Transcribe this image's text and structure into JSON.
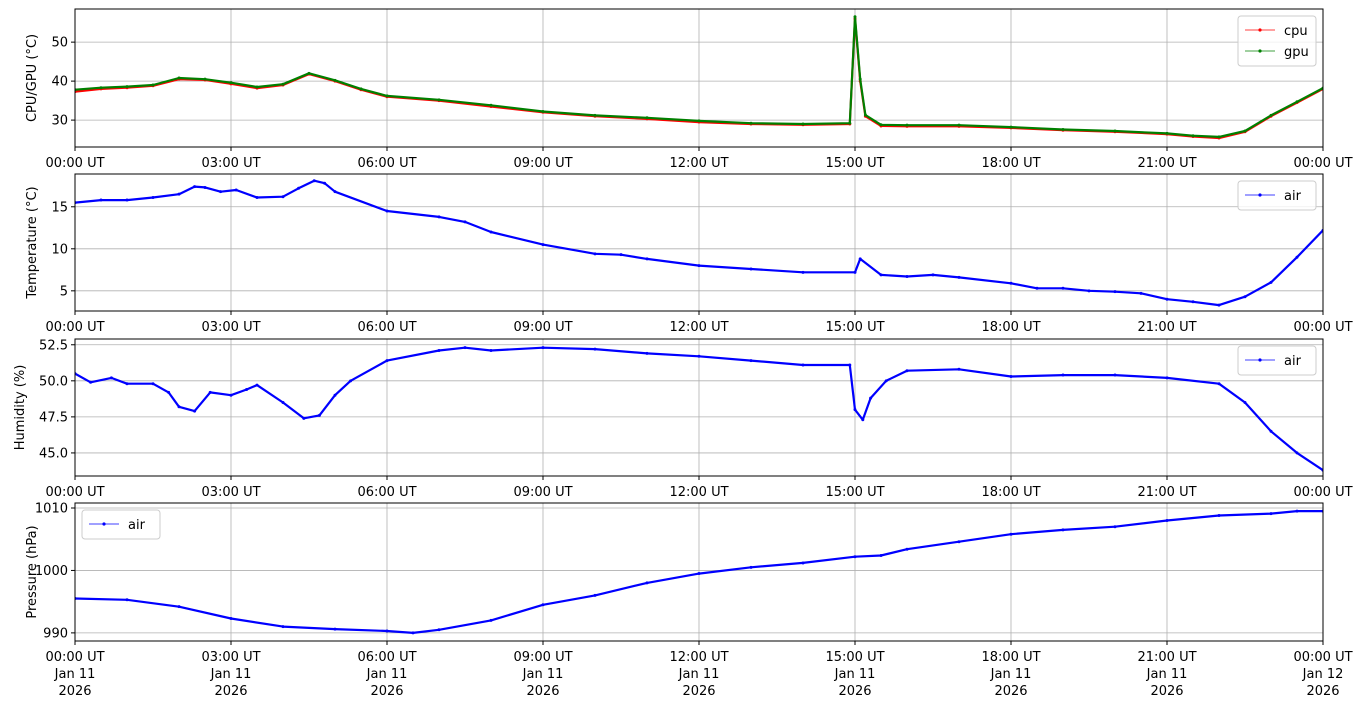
{
  "chart_data": [
    {
      "type": "line",
      "ylabel": "CPU/GPU (°C)",
      "ylim": [
        23.1,
        58.5
      ],
      "yticks": [
        30,
        40,
        50
      ],
      "xlim": [
        0,
        24
      ],
      "grid": true,
      "legend": "top-right",
      "series": [
        {
          "name": "cpu",
          "color": "#ff0000",
          "x": [
            0,
            0.5,
            1,
            1.5,
            2,
            2.5,
            3,
            3.5,
            4,
            4.5,
            5,
            5.5,
            6,
            7,
            8,
            9,
            10,
            11,
            12,
            13,
            14,
            14.9,
            15.0,
            15.1,
            15.2,
            15.5,
            16,
            17,
            18,
            19,
            20,
            21,
            21.5,
            22,
            22.5,
            23,
            23.5,
            24
          ],
          "y": [
            37.3,
            38,
            38.3,
            38.8,
            40.5,
            40.3,
            39.3,
            38.2,
            39,
            41.8,
            40,
            37.8,
            36,
            35,
            33.5,
            32,
            31,
            30.3,
            29.5,
            29,
            28.8,
            29,
            56,
            40,
            31,
            28.5,
            28.4,
            28.4,
            28,
            27.4,
            27,
            26.4,
            25.8,
            25.4,
            27,
            31,
            34.5,
            38
          ]
        },
        {
          "name": "gpu",
          "color": "#008000",
          "x": [
            0,
            0.5,
            1,
            1.5,
            2,
            2.5,
            3,
            3.5,
            4,
            4.5,
            5,
            5.5,
            6,
            7,
            8,
            9,
            10,
            11,
            12,
            13,
            14,
            14.9,
            15.0,
            15.1,
            15.2,
            15.5,
            16,
            17,
            18,
            19,
            20,
            21,
            21.5,
            22,
            22.5,
            23,
            23.5,
            24
          ],
          "y": [
            37.8,
            38.3,
            38.6,
            39,
            40.8,
            40.5,
            39.6,
            38.5,
            39.2,
            42,
            40.2,
            38,
            36.2,
            35.2,
            33.8,
            32.2,
            31.2,
            30.6,
            29.8,
            29.2,
            29,
            29.2,
            56.5,
            40.5,
            31.3,
            28.8,
            28.7,
            28.7,
            28.2,
            27.6,
            27.2,
            26.6,
            26,
            25.7,
            27.2,
            31.2,
            34.7,
            38.2
          ]
        }
      ]
    },
    {
      "type": "line",
      "ylabel": "Temperature (°C)",
      "ylim": [
        2.6,
        18.9
      ],
      "yticks": [
        5,
        10,
        15
      ],
      "xlim": [
        0,
        24
      ],
      "grid": true,
      "legend": "top-right",
      "series": [
        {
          "name": "air",
          "color": "#0000ff",
          "x": [
            0,
            0.5,
            1,
            1.5,
            2,
            2.3,
            2.5,
            2.8,
            3.1,
            3.5,
            4,
            4.3,
            4.6,
            4.8,
            5,
            6,
            7,
            7.5,
            8,
            9,
            10,
            10.5,
            11,
            12,
            13,
            14,
            15,
            15.1,
            15.5,
            16,
            16.5,
            17,
            18,
            18.5,
            19,
            19.5,
            20,
            20.5,
            21,
            21.5,
            22,
            22.5,
            23,
            23.5,
            24
          ],
          "y": [
            15.5,
            15.8,
            15.8,
            16.1,
            16.5,
            17.4,
            17.3,
            16.8,
            17,
            16.1,
            16.2,
            17.2,
            18.1,
            17.8,
            16.8,
            14.5,
            13.8,
            13.2,
            12,
            10.5,
            9.4,
            9.3,
            8.8,
            8,
            7.6,
            7.2,
            7.2,
            8.8,
            6.9,
            6.7,
            6.9,
            6.6,
            5.9,
            5.3,
            5.3,
            5.0,
            4.9,
            4.7,
            4.0,
            3.7,
            3.3,
            4.3,
            6.0,
            9.0,
            12.2
          ]
        }
      ]
    },
    {
      "type": "line",
      "ylabel": "Humidity (%)",
      "ylim": [
        43.4,
        52.9
      ],
      "yticks": [
        45.0,
        47.5,
        50.0,
        52.5
      ],
      "ytick_labels": [
        "45.0",
        "47.5",
        "50.0",
        "52.5"
      ],
      "xlim": [
        0,
        24
      ],
      "grid": true,
      "legend": "top-right",
      "series": [
        {
          "name": "air",
          "color": "#0000ff",
          "x": [
            0,
            0.3,
            0.7,
            1,
            1.5,
            1.8,
            2,
            2.3,
            2.6,
            3,
            3.3,
            3.5,
            4,
            4.4,
            4.7,
            5,
            5.3,
            6,
            7,
            7.5,
            8,
            9,
            10,
            11,
            12,
            13,
            14,
            14.9,
            15,
            15.15,
            15.3,
            15.6,
            16,
            17,
            18,
            19,
            20,
            21,
            22,
            22.5,
            23,
            23.5,
            24
          ],
          "y": [
            50.5,
            49.9,
            50.2,
            49.8,
            49.8,
            49.2,
            48.2,
            47.9,
            49.2,
            49,
            49.4,
            49.7,
            48.5,
            47.4,
            47.6,
            49,
            50,
            51.4,
            52.1,
            52.3,
            52.1,
            52.3,
            52.2,
            51.9,
            51.7,
            51.4,
            51.1,
            51.1,
            48,
            47.3,
            48.8,
            50,
            50.7,
            50.8,
            50.3,
            50.4,
            50.4,
            50.2,
            49.8,
            48.5,
            46.5,
            45.0,
            43.8
          ]
        }
      ]
    },
    {
      "type": "line",
      "ylabel": "Pressure (hPa)",
      "ylim": [
        988.7,
        1010.8
      ],
      "yticks": [
        990,
        1000,
        1010
      ],
      "xlim": [
        0,
        24
      ],
      "grid": true,
      "legend": "top-left",
      "series": [
        {
          "name": "air",
          "color": "#0000ff",
          "x": [
            0,
            1,
            2,
            3,
            4,
            5,
            6,
            6.5,
            7,
            8,
            9,
            10,
            11,
            12,
            13,
            14,
            15,
            15.5,
            16,
            17,
            18,
            19,
            20,
            21,
            22,
            23,
            23.5,
            24
          ],
          "y": [
            995.5,
            995.3,
            994.2,
            992.3,
            991,
            990.6,
            990.3,
            990,
            990.5,
            992,
            994.5,
            996,
            998,
            999.5,
            1000.5,
            1001.2,
            1002.2,
            1002.4,
            1003.4,
            1004.6,
            1005.8,
            1006.5,
            1007,
            1008,
            1008.8,
            1009.1,
            1009.5,
            1009.5
          ]
        }
      ]
    }
  ],
  "xticks": {
    "values": [
      0,
      3,
      6,
      9,
      12,
      15,
      18,
      21,
      24
    ],
    "labels": [
      "00:00 UT",
      "03:00 UT",
      "06:00 UT",
      "09:00 UT",
      "12:00 UT",
      "15:00 UT",
      "18:00 UT",
      "21:00 UT",
      "00:00 UT"
    ],
    "date_labels": [
      "Jan 11",
      "Jan 11",
      "Jan 11",
      "Jan 11",
      "Jan 11",
      "Jan 11",
      "Jan 11",
      "Jan 11",
      "Jan 12"
    ],
    "year_labels": [
      "2026",
      "2026",
      "2026",
      "2026",
      "2026",
      "2026",
      "2026",
      "2026",
      "2026"
    ]
  }
}
